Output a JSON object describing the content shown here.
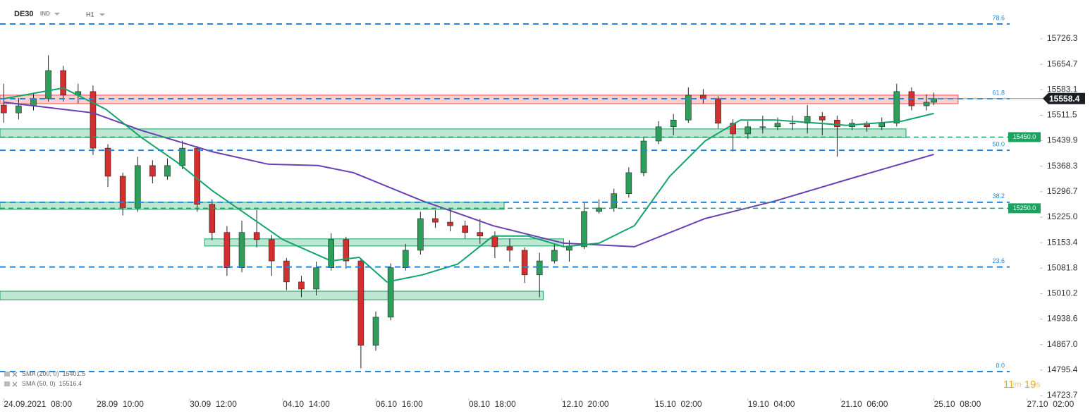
{
  "header": {
    "symbol": "DE30",
    "market": "IND",
    "timeframe": "H1"
  },
  "chart_data": {
    "type": "candlestick",
    "xlim": [
      -2,
      557
    ],
    "ylim": [
      14715.8,
      15835.3
    ],
    "xticks": [
      {
        "value": 0,
        "label": "24.09.2021  08:00"
      },
      {
        "value": 50,
        "label": "28.09  10:00"
      },
      {
        "value": 100,
        "label": "30.09  12:00"
      },
      {
        "value": 150,
        "label": "04.10  14:00"
      },
      {
        "value": 200,
        "label": "06.10  16:00"
      },
      {
        "value": 250,
        "label": "08.10  18:00"
      },
      {
        "value": 300,
        "label": "12.10  20:00"
      },
      {
        "value": 350,
        "label": "15.10  02:00"
      },
      {
        "value": 400,
        "label": "19.10  04:00"
      },
      {
        "value": 450,
        "label": "21.10  06:00"
      },
      {
        "value": 500,
        "label": "25.10  08:00"
      },
      {
        "value": 550,
        "label": "27.10  02:00"
      }
    ],
    "yticks": [
      15726.3,
      15654.7,
      15583.1,
      15511.5,
      15439.9,
      15368.3,
      15296.7,
      {
        "value": 15225,
        "label": "15225.0"
      },
      15153.4,
      15081.8,
      15010.2,
      14938.6,
      {
        "value": 14867,
        "label": "14867.0"
      },
      14795.4,
      14723.7
    ],
    "candles": {
      "up_color": "#2e9e5b",
      "down_color": "#d32f2f",
      "x": [
        0,
        8,
        16,
        24,
        32,
        40,
        48,
        56,
        64,
        72,
        80,
        88,
        96,
        104,
        112,
        120,
        128,
        136,
        144,
        152,
        160,
        168,
        176,
        184,
        192,
        200,
        208,
        216,
        224,
        232,
        240,
        248,
        256,
        264,
        272,
        280,
        288,
        296,
        304,
        312,
        320,
        328,
        336,
        344,
        352,
        360,
        368,
        376,
        384,
        392,
        400,
        408,
        416,
        424,
        432,
        440,
        448,
        456,
        464,
        472,
        480,
        488,
        496,
        500
      ],
      "ohlc": [
        [
          15540,
          15600,
          15490,
          15518
        ],
        [
          15518,
          15560,
          15500,
          15538
        ],
        [
          15538,
          15575,
          15525,
          15558
        ],
        [
          15558,
          15680,
          15550,
          15637
        ],
        [
          15637,
          15650,
          15550,
          15568
        ],
        [
          15568,
          15600,
          15545,
          15578
        ],
        [
          15578,
          15595,
          15400,
          15419
        ],
        [
          15419,
          15430,
          15310,
          15340
        ],
        [
          15340,
          15350,
          15230,
          15251
        ],
        [
          15251,
          15395,
          15240,
          15370
        ],
        [
          15370,
          15385,
          15320,
          15340
        ],
        [
          15340,
          15390,
          15330,
          15370
        ],
        [
          15370,
          15440,
          15360,
          15419
        ],
        [
          15419,
          15425,
          15240,
          15261
        ],
        [
          15261,
          15275,
          15160,
          15182
        ],
        [
          15182,
          15200,
          15060,
          15083
        ],
        [
          15083,
          15215,
          15070,
          15182
        ],
        [
          15182,
          15245,
          15140,
          15162
        ],
        [
          15162,
          15175,
          15060,
          15102
        ],
        [
          15102,
          15110,
          15020,
          15043
        ],
        [
          15043,
          15060,
          15000,
          15023
        ],
        [
          15023,
          15100,
          15005,
          15083
        ],
        [
          15083,
          15180,
          15075,
          15162
        ],
        [
          15162,
          15170,
          15080,
          15102
        ],
        [
          15102,
          15110,
          14800,
          14865
        ],
        [
          14865,
          14960,
          14850,
          14944
        ],
        [
          14944,
          15095,
          14935,
          15083
        ],
        [
          15083,
          15150,
          15075,
          15132
        ],
        [
          15132,
          15240,
          15120,
          15221
        ],
        [
          15221,
          15245,
          15195,
          15211
        ],
        [
          15211,
          15250,
          15185,
          15201
        ],
        [
          15201,
          15215,
          15165,
          15182
        ],
        [
          15182,
          15220,
          15150,
          15172
        ],
        [
          15172,
          15185,
          15110,
          15142
        ],
        [
          15142,
          15165,
          15100,
          15132
        ],
        [
          15132,
          15140,
          15040,
          15063
        ],
        [
          15063,
          15125,
          15000,
          15102
        ],
        [
          15102,
          15150,
          15095,
          15132
        ],
        [
          15132,
          15160,
          15100,
          15142
        ],
        [
          15142,
          15265,
          15135,
          15241
        ],
        [
          15241,
          15275,
          15235,
          15251
        ],
        [
          15251,
          15305,
          15240,
          15291
        ],
        [
          15291,
          15365,
          15280,
          15350
        ],
        [
          15350,
          15450,
          15340,
          15439
        ],
        [
          15439,
          15495,
          15430,
          15479
        ],
        [
          15479,
          15515,
          15455,
          15498
        ],
        [
          15498,
          15590,
          15490,
          15568
        ],
        [
          15568,
          15585,
          15545,
          15558
        ],
        [
          15558,
          15565,
          15475,
          15489
        ],
        [
          15489,
          15500,
          15410,
          15459
        ],
        [
          15459,
          15495,
          15445,
          15479
        ],
        [
          15479,
          15510,
          15460,
          15479
        ],
        [
          15479,
          15505,
          15470,
          15489
        ],
        [
          15489,
          15510,
          15470,
          15489
        ],
        [
          15489,
          15540,
          15460,
          15508
        ],
        [
          15508,
          15520,
          15455,
          15498
        ],
        [
          15498,
          15510,
          15395,
          15479
        ],
        [
          15479,
          15500,
          15470,
          15489
        ],
        [
          15489,
          15495,
          15465,
          15479
        ],
        [
          15479,
          15505,
          15470,
          15489
        ],
        [
          15489,
          15600,
          15480,
          15578
        ],
        [
          15578,
          15590,
          15525,
          15538
        ],
        [
          15538,
          15570,
          15525,
          15548
        ],
        [
          15548,
          15575,
          15540,
          15558.4
        ]
      ]
    },
    "series": [
      {
        "name": "SMA (200, 0)",
        "color": "#6a3fb5",
        "x": [
          0,
          48,
          74,
          112,
          142,
          169,
          188,
          225,
          263,
          301,
          339,
          377,
          415,
          453,
          500
        ],
        "values": [
          15548,
          15518,
          15469,
          15409,
          15374,
          15370,
          15350,
          15271,
          15201,
          15152,
          15142,
          15221,
          15271,
          15330,
          15401.5
        ]
      },
      {
        "name": "SMA (50, 0)",
        "color": "#13a36b",
        "x": [
          0,
          32,
          55,
          74,
          93,
          112,
          150,
          176,
          191,
          206,
          225,
          244,
          263,
          282,
          301,
          320,
          339,
          358,
          377,
          396,
          415,
          453,
          483,
          500
        ],
        "values": [
          15558,
          15588,
          15528,
          15449,
          15380,
          15300,
          15162,
          15102,
          15112,
          15043,
          15063,
          15093,
          15172,
          15172,
          15142,
          15152,
          15201,
          15340,
          15439,
          15498,
          15498,
          15483,
          15495,
          15516.4
        ]
      }
    ],
    "fib_levels": [
      {
        "label": "78.6",
        "value": 15768
      },
      {
        "label": "61.8",
        "value": 15558
      },
      {
        "label": "50.0",
        "value": 15413
      },
      {
        "label": "38.2",
        "value": 15267
      },
      {
        "label": "23.6",
        "value": 15085
      },
      {
        "label": "0.0",
        "value": 14791
      }
    ],
    "levels": [
      {
        "value": 15450,
        "label": "15450.0"
      },
      {
        "value": 15250,
        "label": "15250.0"
      }
    ],
    "zones": [
      {
        "x": [
          -2,
          513
        ],
        "y": [
          15544,
          15568
        ],
        "color": "#ef5350"
      },
      {
        "x": [
          -2,
          485
        ],
        "y": [
          15449,
          15473
        ],
        "color": "#1aa260"
      },
      {
        "x": [
          -2,
          269
        ],
        "y": [
          15247,
          15267
        ],
        "color": "#1aa260"
      },
      {
        "x": [
          108,
          301
        ],
        "y": [
          15144,
          15164
        ],
        "color": "#1aa260"
      },
      {
        "x": [
          -2,
          290
        ],
        "y": [
          14993,
          15017
        ],
        "color": "#1aa260"
      }
    ],
    "last_price": 15558.4,
    "timer": [
      "11",
      "m",
      "19",
      "s"
    ]
  }
}
